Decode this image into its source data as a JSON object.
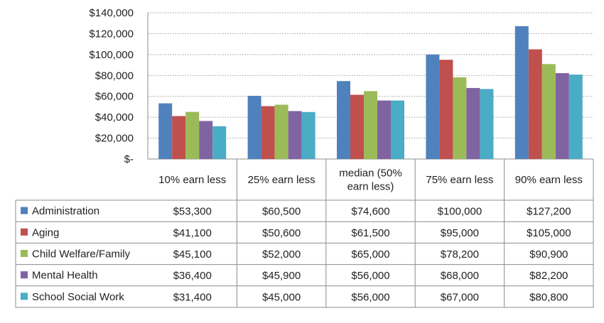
{
  "chart_data": {
    "type": "bar",
    "categories": [
      "10% earn less",
      "25% earn less",
      "median (50% earn less)",
      "75% earn less",
      "90% earn less"
    ],
    "category_lines": [
      [
        "10% earn less"
      ],
      [
        "25% earn less"
      ],
      [
        "median (50%",
        "earn less)"
      ],
      [
        "75% earn less"
      ],
      [
        "90% earn less"
      ]
    ],
    "series": [
      {
        "name": "Administration",
        "color": "#4F81BD",
        "values": [
          53300,
          60500,
          74600,
          100000,
          127200
        ],
        "labels": [
          "$53,300",
          "$60,500",
          "$74,600",
          "$100,000",
          "$127,200"
        ]
      },
      {
        "name": "Aging",
        "color": "#C0504D",
        "values": [
          41100,
          50600,
          61500,
          95000,
          105000
        ],
        "labels": [
          "$41,100",
          "$50,600",
          "$61,500",
          "$95,000",
          "$105,000"
        ]
      },
      {
        "name": "Child Welfare/Family",
        "color": "#9BBB59",
        "values": [
          45100,
          52000,
          65000,
          78200,
          90900
        ],
        "labels": [
          "$45,100",
          "$52,000",
          "$65,000",
          "$78,200",
          "$90,900"
        ]
      },
      {
        "name": "Mental Health",
        "color": "#8064A2",
        "values": [
          36400,
          45900,
          56000,
          68000,
          82200
        ],
        "labels": [
          "$36,400",
          "$45,900",
          "$56,000",
          "$68,000",
          "$82,200"
        ]
      },
      {
        "name": "School Social Work",
        "color": "#4BACC6",
        "values": [
          31400,
          45000,
          56000,
          67000,
          80800
        ],
        "labels": [
          "$31,400",
          "$45,000",
          "$56,000",
          "$67,000",
          "$80,800"
        ]
      }
    ],
    "ylim": [
      0,
      140000
    ],
    "yticks": [
      0,
      20000,
      40000,
      60000,
      80000,
      100000,
      120000,
      140000
    ],
    "ytick_labels": [
      "$-",
      "$20,000",
      "$40,000",
      "$60,000",
      "$80,000",
      "$100,000",
      "$120,000",
      "$140,000"
    ],
    "grid": true,
    "legend": "data-table"
  }
}
